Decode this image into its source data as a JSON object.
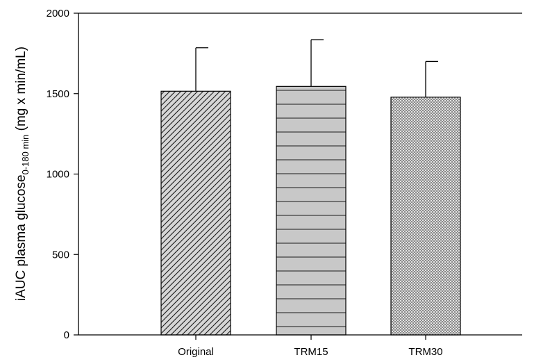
{
  "chart_data": {
    "type": "bar",
    "title": "",
    "xlabel": "",
    "ylabel": {
      "main": "iAUC plasma glucose",
      "subscript": "0-180 min",
      "unit": " (mg x min/mL)"
    },
    "categories": [
      "Original",
      "TRM15",
      "TRM30"
    ],
    "values": [
      1515,
      1545,
      1478
    ],
    "error_upper": [
      1785,
      1835,
      1700
    ],
    "ylim": [
      0,
      2000
    ],
    "yticks": [
      "0",
      "500",
      "1000",
      "1500",
      "2000"
    ],
    "bar_patterns": [
      "diagonal-hatch",
      "horizontal-lines",
      "dotted-mesh"
    ],
    "bar_colors": [
      "#d4d4d4",
      "#c8c8c8",
      "#9a9a9a"
    ],
    "grid": false,
    "legend": "none"
  }
}
